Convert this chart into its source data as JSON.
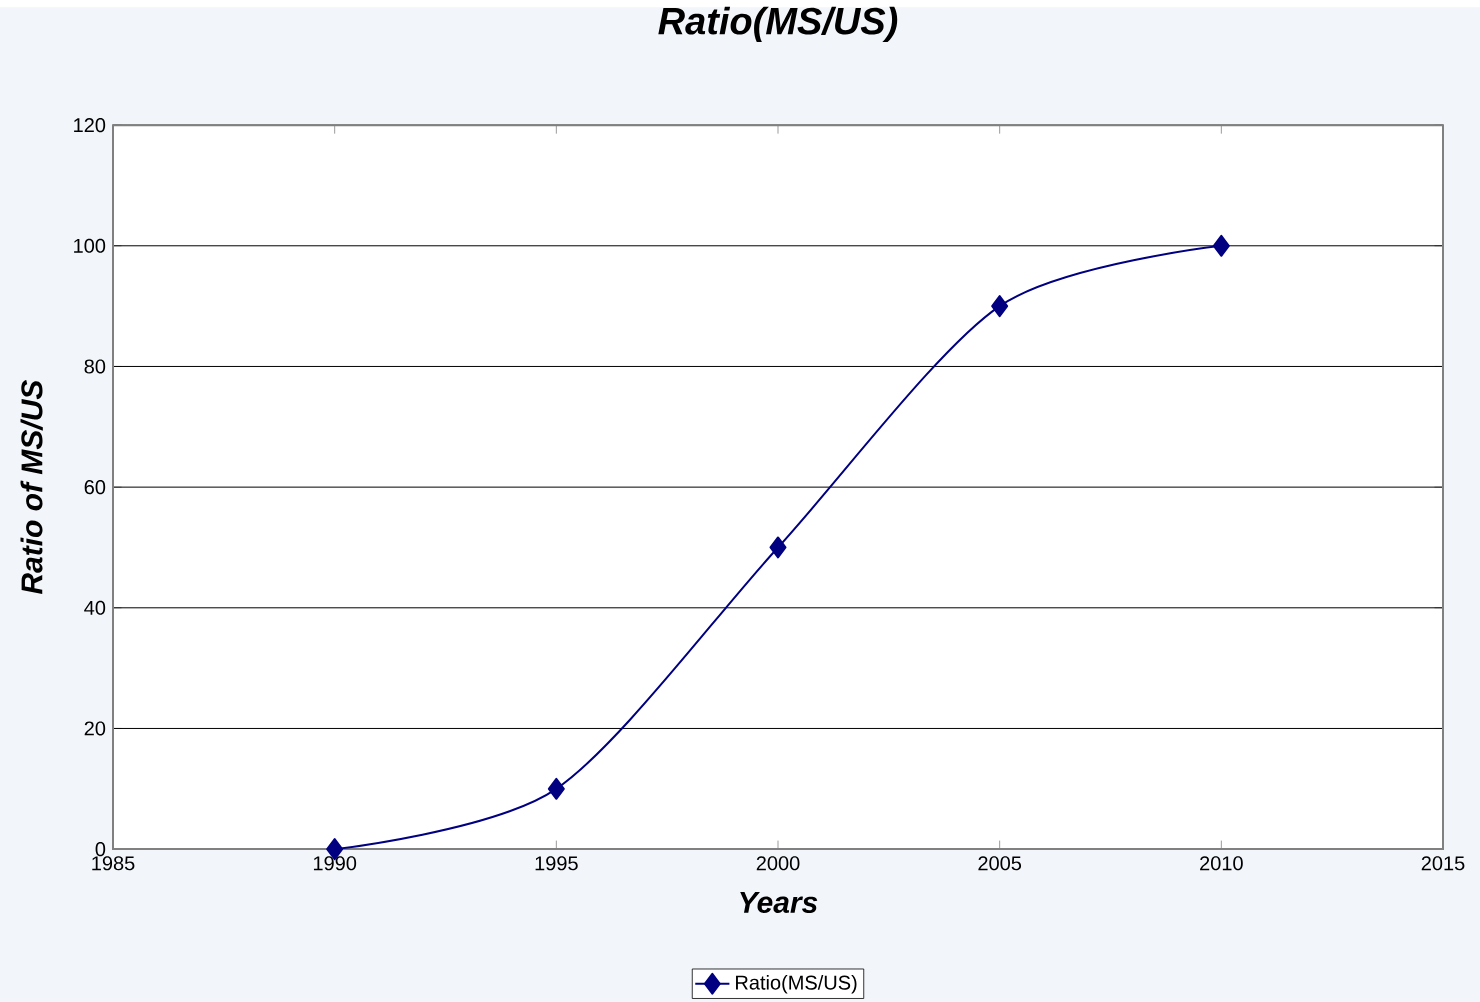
{
  "chart_data": {
    "type": "line",
    "title": "Ratio(MS/US)",
    "xlabel": "Years",
    "ylabel": "Ratio of MS/US",
    "x": [
      1990,
      1995,
      2000,
      2005,
      2010
    ],
    "series": [
      {
        "name": "Ratio(MS/US)",
        "color": "#000080",
        "values": [
          0,
          10,
          50,
          90,
          100
        ]
      }
    ],
    "xlim": [
      1985,
      2015
    ],
    "xticks": [
      1985,
      1990,
      1995,
      2000,
      2005,
      2010,
      2015
    ],
    "ylim": [
      0,
      120
    ],
    "yticks": [
      0,
      20,
      40,
      60,
      80,
      100,
      120
    ],
    "grid": "y",
    "legend": "bottom",
    "marker": "diamond",
    "line_style": "solid"
  }
}
